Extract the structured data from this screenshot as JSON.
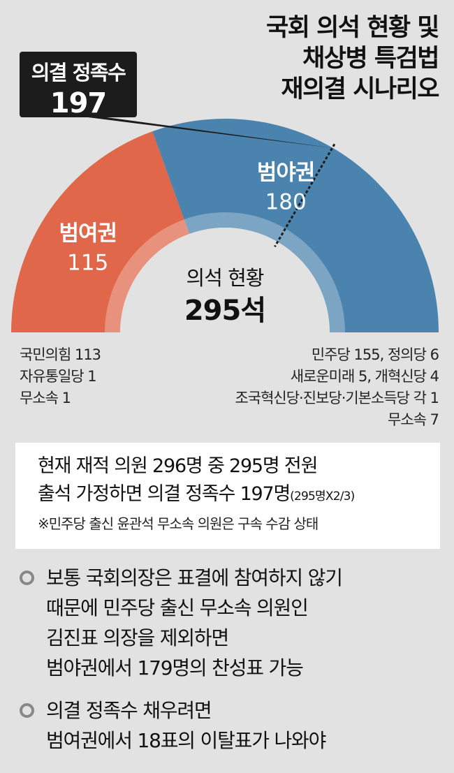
{
  "title": {
    "lines": [
      "국회 의석 현황 및",
      "채상병 특검법",
      "재의결 시나리오"
    ]
  },
  "quorum": {
    "label": "의결 정족수",
    "value": "197"
  },
  "center": {
    "label": "의석 현황",
    "value": "295석"
  },
  "colors": {
    "ruling": "#e0674a",
    "opposition": "#4a83ad",
    "background": "#e2e2e2",
    "inner_ring": "#aab4c0"
  },
  "chart_data": {
    "type": "pie",
    "subtype": "half-donut",
    "total": 295,
    "threshold": 197,
    "series": [
      {
        "name": "범여권",
        "value": 115
      },
      {
        "name": "범야권",
        "value": 180
      }
    ]
  },
  "labels": {
    "ruling_name": "범여권",
    "ruling_value": "115",
    "opposition_name": "범야권",
    "opposition_value": "180"
  },
  "legend_left": [
    "국민의힘 113",
    "자유통일당 1",
    "무소속 1"
  ],
  "legend_right": [
    "민주당 155, 정의당 6",
    "새로운미래 5, 개혁신당 4",
    "조국혁신당·진보당·기본소득당 각 1",
    "무소속 7"
  ],
  "note": {
    "line1": "현재 재적 의원 296명 중 295명 전원",
    "line2_main": "출석 가정하면 의결 정족수 197명",
    "line2_small": "(295명X2/3)",
    "footnote": "※민주당 출신 윤관석 무소속 의원은 구속 수감 상태"
  },
  "bullets": [
    {
      "lines": [
        "보통 국회의장은 표결에 참여하지 않기",
        "때문에 민주당 출신 무소속 의원인",
        "김진표 의장을 제외하면",
        "범야권에서 179명의 찬성표 가능"
      ]
    },
    {
      "lines": [
        "의결 정족수 채우려면",
        "범여권에서 18표의 이탈표가 나와야"
      ]
    }
  ]
}
